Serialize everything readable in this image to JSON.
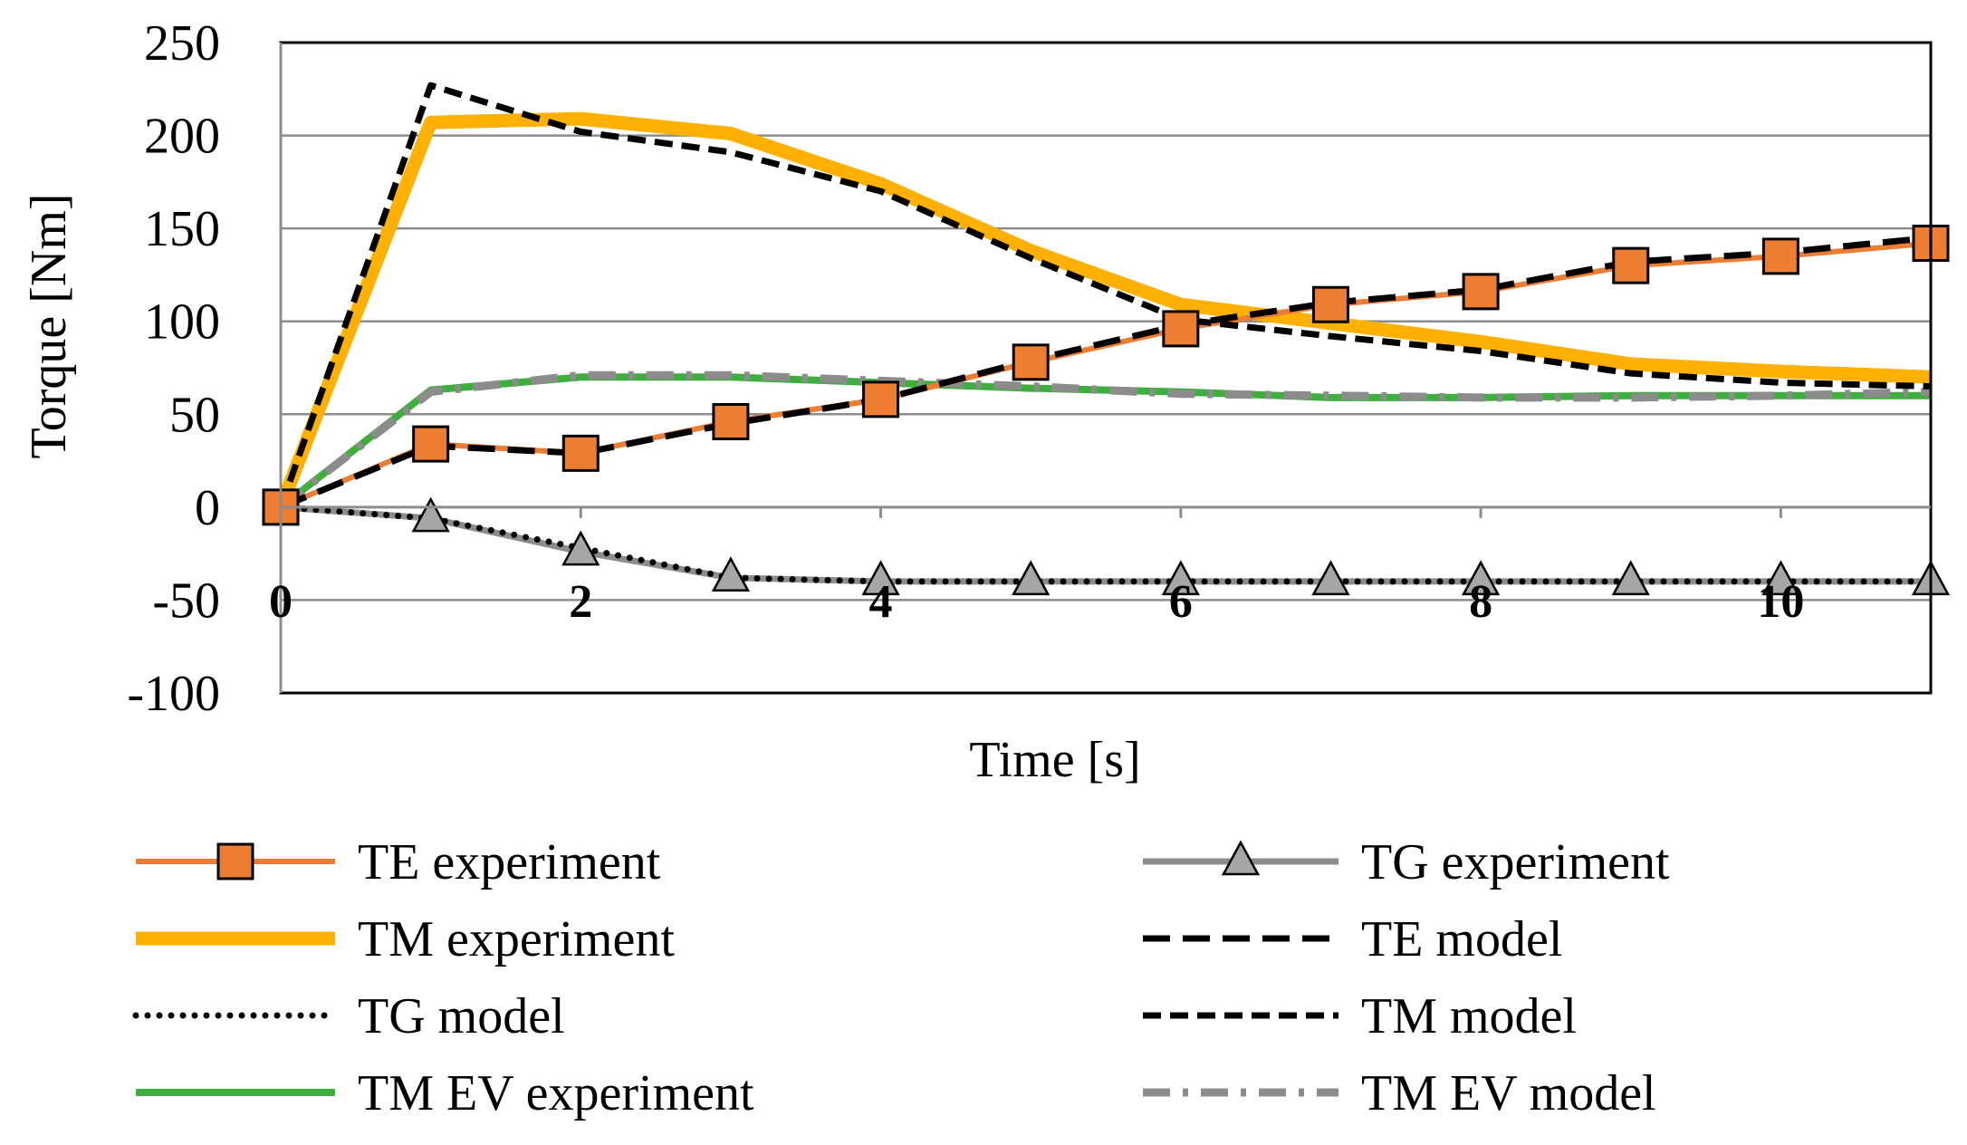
{
  "chart_data": {
    "type": "line",
    "title": "",
    "xlabel": "Time [s]",
    "ylabel": "Torque  [Nm]",
    "xlim": [
      0,
      11
    ],
    "ylim": [
      -100,
      250
    ],
    "x_ticks": [
      0,
      2,
      4,
      6,
      8,
      10
    ],
    "y_ticks": [
      -100,
      -50,
      0,
      50,
      100,
      150,
      200,
      250
    ],
    "x_tick_labels": [
      "0",
      "2",
      "4",
      "6",
      "8",
      "10"
    ],
    "y_tick_labels": [
      "-100",
      "-50",
      "0",
      "50",
      "100",
      "150",
      "200",
      "250"
    ],
    "grid": "horizontal",
    "legend_position": "bottom",
    "x": [
      0,
      1,
      2,
      3,
      4,
      5,
      6,
      7,
      8,
      9,
      10,
      11
    ],
    "series": [
      {
        "name": "TE experiment",
        "color": "#ED7D31",
        "style": "solid-square-markers",
        "values": [
          0,
          34,
          29,
          46,
          58,
          78,
          96,
          109,
          116,
          130,
          135,
          142
        ]
      },
      {
        "name": "TG experiment",
        "color": "#8C8C8C",
        "style": "solid-triangle-markers",
        "values": [
          0,
          -6,
          -24,
          -38,
          -40,
          -40,
          -40,
          -40,
          -40,
          -40,
          -40,
          -40
        ]
      },
      {
        "name": "TM experiment",
        "color": "#FFB000",
        "style": "thick-solid",
        "values": [
          0,
          207,
          209,
          201,
          174,
          138,
          109,
          99,
          89,
          77,
          73,
          70
        ]
      },
      {
        "name": "TE model",
        "color": "#000000",
        "style": "long-dash",
        "values": [
          0,
          33,
          29,
          45,
          58,
          79,
          98,
          110,
          117,
          132,
          137,
          145
        ]
      },
      {
        "name": "TG model",
        "color": "#000000",
        "style": "dotted",
        "values": [
          0,
          -6,
          -22,
          -38,
          -40,
          -40,
          -40,
          -40,
          -40,
          -40,
          -40,
          -40
        ]
      },
      {
        "name": "TM model",
        "color": "#000000",
        "style": "short-dash",
        "values": [
          0,
          227,
          202,
          191,
          170,
          134,
          101,
          92,
          84,
          72,
          67,
          65
        ]
      },
      {
        "name": "TM EV experiment",
        "color": "#3EAF3E",
        "style": "solid",
        "values": [
          0,
          63,
          70,
          70,
          67,
          64,
          62,
          59,
          59,
          60,
          60,
          60
        ]
      },
      {
        "name": "TM EV model",
        "color": "#8C8C8C",
        "style": "dash-dot",
        "values": [
          0,
          62,
          71,
          71,
          68,
          65,
          61,
          60,
          59,
          59,
          60,
          62
        ]
      }
    ]
  }
}
